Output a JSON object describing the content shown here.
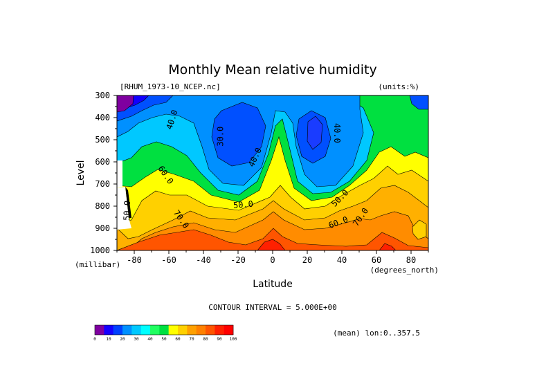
{
  "chart_data": {
    "type": "filled-contour",
    "title": "Monthly Mean relative humidity",
    "file_label": "[RHUM_1973-10_NCEP.nc]",
    "units_label": "(units:%)",
    "xlabel": "Latitude",
    "x_units": "(degrees_north)",
    "ylabel": "Level",
    "y_units": "(millibar)",
    "xlim": [
      -90,
      90
    ],
    "ylim": [
      1000,
      300
    ],
    "x_ticks": [
      -80,
      -60,
      -40,
      -20,
      0,
      20,
      40,
      60,
      80
    ],
    "y_ticks": [
      300,
      400,
      500,
      600,
      700,
      800,
      900,
      1000
    ],
    "contour_interval_text": "CONTOUR INTERVAL = 5.000E+00",
    "footer_text": "(mean) lon:0..357.5",
    "contour_levels": [
      0,
      5,
      10,
      15,
      20,
      25,
      30,
      35,
      40,
      45,
      50,
      55,
      60,
      65,
      70,
      75,
      80,
      85,
      90,
      95,
      100
    ],
    "colorbar": {
      "ticks": [
        0,
        10,
        20,
        30,
        40,
        50,
        60,
        70,
        80,
        90,
        100
      ],
      "colors": [
        "#7f00a0",
        "#1400ff",
        "#0040ff",
        "#0090ff",
        "#00c8ff",
        "#00ffff",
        "#20ff60",
        "#00e040",
        "#ffff00",
        "#ffd000",
        "#ffa000",
        "#ff8000",
        "#ff5500",
        "#ff2000",
        "#ff0000"
      ]
    },
    "contour_labels": [
      {
        "text": "40.0",
        "lat": -58,
        "level": 410,
        "angle": -72
      },
      {
        "text": "30.0",
        "lat": -30,
        "level": 485,
        "angle": -90
      },
      {
        "text": "40.0",
        "lat": -10,
        "level": 580,
        "angle": -65
      },
      {
        "text": "40.0",
        "lat": 37,
        "level": 470,
        "angle": 90
      },
      {
        "text": "60.0",
        "lat": -62,
        "level": 660,
        "angle": 55
      },
      {
        "text": "50.0",
        "lat": -84,
        "level": 820,
        "angle": -88
      },
      {
        "text": "70.0",
        "lat": -53,
        "level": 860,
        "angle": 55
      },
      {
        "text": "50.0",
        "lat": -17,
        "level": 795,
        "angle": -5
      },
      {
        "text": "50.0",
        "lat": 39,
        "level": 765,
        "angle": -45
      },
      {
        "text": "60.0",
        "lat": 38,
        "level": 875,
        "angle": -20
      },
      {
        "text": "70.0",
        "lat": 51,
        "level": 850,
        "angle": -55
      }
    ],
    "fields": [
      {
        "name": "lowest-humidity-region",
        "lat": -89,
        "level": 330,
        "value": 5
      },
      {
        "name": "southern-dry-core",
        "lat": -28,
        "level": 470,
        "value": 27
      },
      {
        "name": "northern-dry-core",
        "lat": 24,
        "level": 480,
        "value": 28
      },
      {
        "name": "tropical-moist-tongue",
        "lat": 5,
        "level": 600,
        "value": 60
      },
      {
        "name": "surface-moist-layer",
        "lat": 0,
        "level": 990,
        "value": 85
      },
      {
        "name": "arctic-moist-column",
        "lat": 85,
        "level": 650,
        "value": 70
      }
    ]
  }
}
